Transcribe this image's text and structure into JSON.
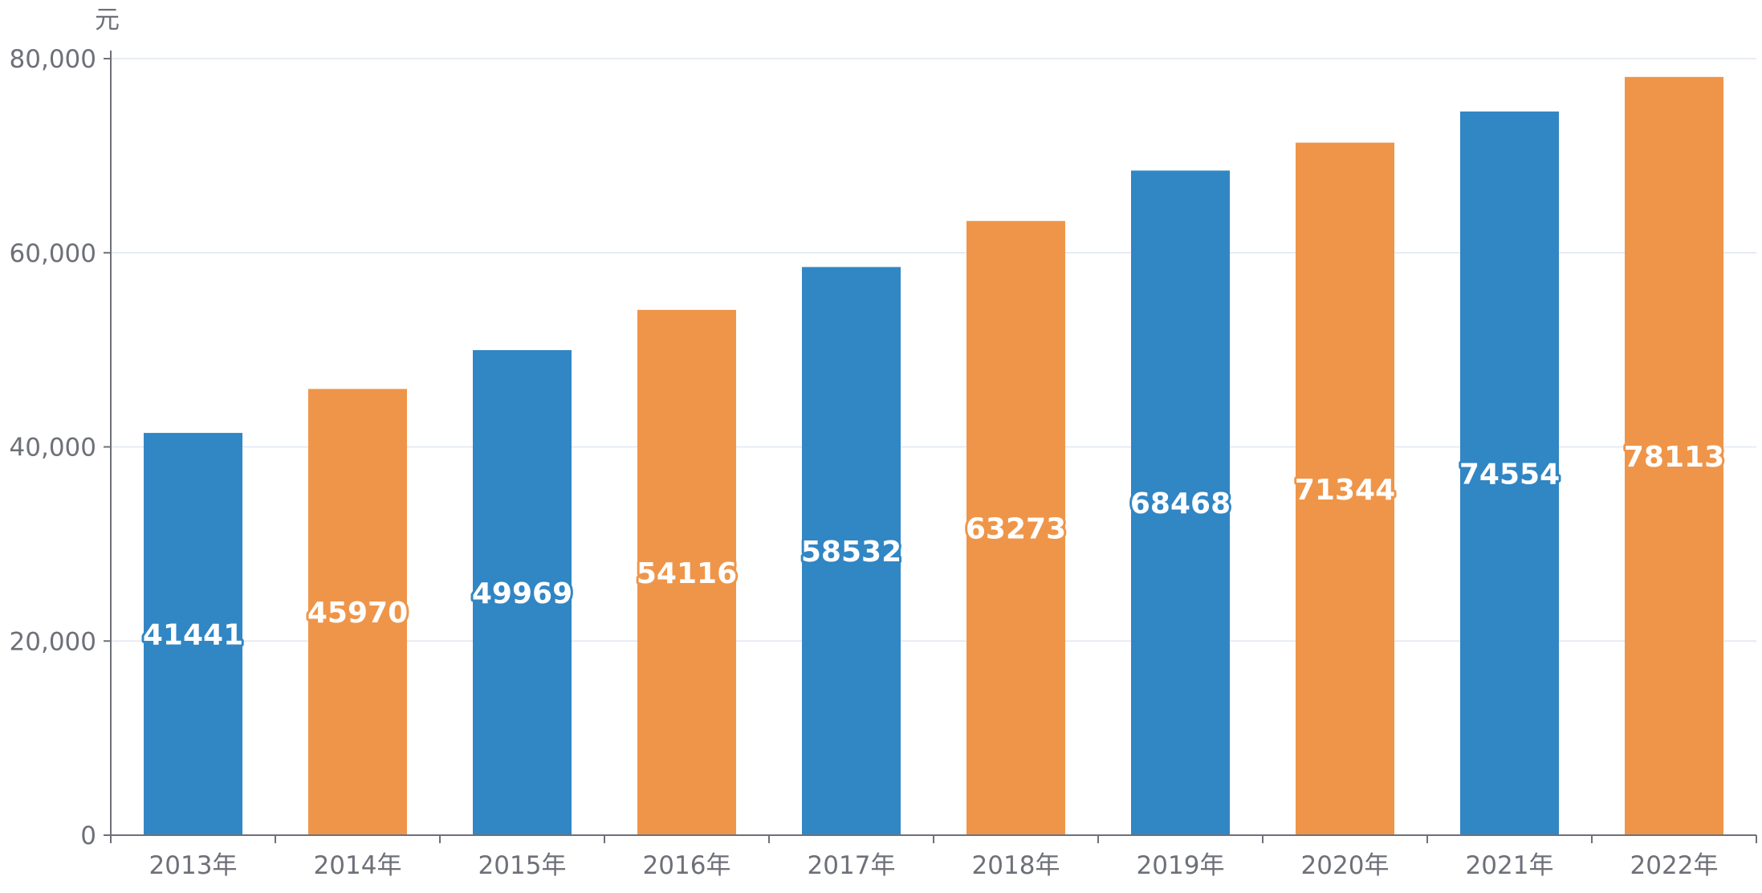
{
  "chart_data": {
    "type": "bar",
    "categories": [
      "2013年",
      "2014年",
      "2015年",
      "2016年",
      "2017年",
      "2018年",
      "2019年",
      "2020年",
      "2021年",
      "2022年"
    ],
    "values": [
      41441,
      45970,
      49969,
      54116,
      58532,
      63273,
      68468,
      71344,
      74554,
      78113
    ],
    "data_labels": [
      "41441",
      "45970",
      "49969",
      "54116",
      "58532",
      "63273",
      "68468",
      "71344",
      "74554",
      "78113"
    ],
    "y_unit": "元",
    "yticks": [
      "0",
      "20,000",
      "40,000",
      "60,000",
      "80,000"
    ],
    "ytick_values": [
      0,
      20000,
      40000,
      60000,
      80000
    ],
    "ylim": [
      0,
      80000
    ],
    "grid": true,
    "legend": "none",
    "colors": {
      "bar_alternating": [
        "#3186c4",
        "#ef9549"
      ],
      "axis": "#6e7079",
      "grid": "#e0e6f1",
      "label_text": "#ffffff"
    }
  }
}
